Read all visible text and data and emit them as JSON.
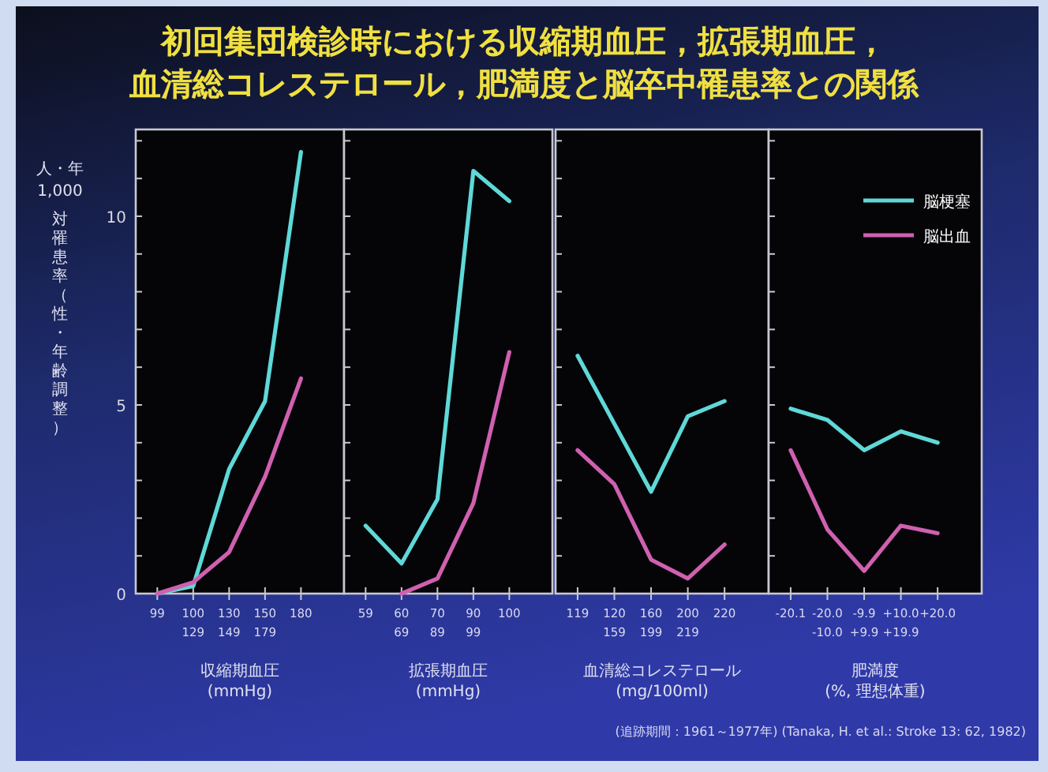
{
  "chart_data": [
    {
      "type": "line",
      "title": "初回集団検診時における収縮期血圧，拡張期血圧，血清総コレステロール，肥満度と脳卒中罹患率との関係",
      "ylabel": "人・年 1,000 対罹患率（性・年齢調整）",
      "xlabel": "収縮期血圧\n(mmHg)",
      "categories": [
        "99",
        "100\n129",
        "130\n149",
        "150\n179",
        "180"
      ],
      "ylim": [
        0,
        12.3
      ],
      "yticks": [
        0,
        {
          "value": 1,
          "label": null
        },
        {
          "value": 2,
          "label": null
        },
        {
          "value": 3,
          "label": null
        },
        {
          "value": 4,
          "label": null
        },
        5,
        {
          "value": 6,
          "label": null
        },
        {
          "value": 7,
          "label": null
        },
        {
          "value": 8,
          "label": null
        },
        {
          "value": 9,
          "label": null
        },
        10,
        {
          "value": 11,
          "label": null
        },
        {
          "value": 12,
          "label": null
        }
      ],
      "series": [
        {
          "color": "#5fd8d8",
          "values": [
            0,
            0.2,
            3.3,
            5.1,
            11.7
          ]
        },
        {
          "color": "#d060b0",
          "values": [
            0,
            0.3,
            1.1,
            3.1,
            5.7
          ]
        }
      ]
    },
    {
      "type": "line",
      "xlabel": "拡張期血圧\n(mmHg)",
      "categories": [
        "59",
        "60\n69",
        "70\n89",
        "90\n99",
        "100"
      ],
      "ylim": [
        0,
        12.3
      ],
      "yticks": [
        0,
        1,
        2,
        3,
        4,
        5,
        6,
        7,
        8,
        9,
        10,
        11,
        12
      ],
      "tick_labels": "x",
      "series": [
        {
          "color": "#5fd8d8",
          "values": [
            1.8,
            0.8,
            2.5,
            11.2,
            10.4
          ]
        },
        {
          "color": "#d060b0",
          "values": [
            null,
            0,
            0.4,
            2.4,
            6.4
          ]
        }
      ]
    },
    {
      "type": "line",
      "xlabel": "血清総コレステロール\n(mg/100ml)",
      "categories": [
        "119",
        "120\n159",
        "160\n199",
        "200\n219",
        "220"
      ],
      "ylim": [
        0,
        12.3
      ],
      "yticks": [
        0,
        1,
        2,
        3,
        4,
        5,
        6,
        7,
        8,
        9,
        10,
        11,
        12
      ],
      "tick_labels": "x",
      "series": [
        {
          "color": "#5fd8d8",
          "values": [
            6.3,
            4.5,
            2.7,
            4.7,
            5.1
          ]
        },
        {
          "color": "#d060b0",
          "values": [
            3.8,
            2.9,
            0.9,
            0.4,
            1.3
          ]
        }
      ]
    },
    {
      "type": "line",
      "xlabel": "肥満度\n(%, 理想体重)",
      "categories": [
        "-20.1",
        "-20.0\n-10.0",
        "-9.9\n+9.9",
        "+10.0\n+19.9",
        "+20.0"
      ],
      "ylim": [
        0,
        12.3
      ],
      "yticks": [
        0,
        1,
        2,
        3,
        4,
        5,
        6,
        7,
        8,
        9,
        10,
        11,
        12
      ],
      "tick_labels": "x",
      "legend": "top right",
      "annotations": [
        "(追跡期間：1961～1977年)  (Tanaka, H. et al.: Stroke 13: 62, 1982)"
      ],
      "series": [
        {
          "name": "脳梗塞",
          "color": "#5fd8d8",
          "values": [
            4.9,
            4.6,
            3.8,
            4.3,
            4.0
          ]
        },
        {
          "name": "脳出血",
          "color": "#d060b0",
          "values": [
            3.8,
            1.7,
            0.6,
            1.8,
            1.6
          ]
        }
      ]
    }
  ]
}
